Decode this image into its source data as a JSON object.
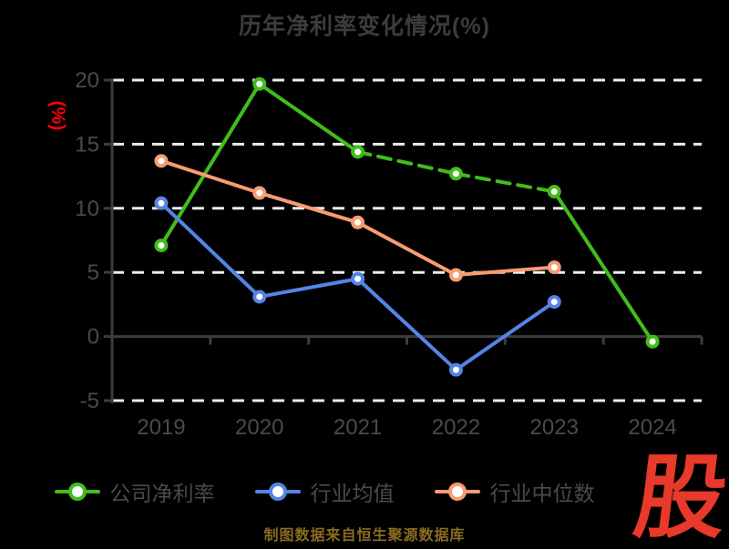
{
  "title": "历年净利率变化情况(%)",
  "y_axis_unit": "(%)",
  "caption": "制图数据来自恒生聚源数据库",
  "logo_text": "股",
  "colors": {
    "background": "#000000",
    "title": "#3c3c3c",
    "axis": "#3d3d3d",
    "grid": "#ececec",
    "tick_label": "#4a4a4a",
    "legend_text": "#4a4a4a",
    "unit_label": "#ff0000",
    "caption": "#8a6c20",
    "logo": "#e8392b"
  },
  "chart_data": {
    "type": "line",
    "title": "历年净利率变化情况(%)",
    "ylabel": "(%)",
    "categories": [
      "2019",
      "2020",
      "2021",
      "2022",
      "2023",
      "2024"
    ],
    "series": [
      {
        "name": "公司净利率",
        "color": "#41bd1c",
        "values": [
          7.1,
          19.7,
          14.4,
          12.7,
          11.3,
          -0.4
        ],
        "dashed_between_indices": [
          2,
          4
        ]
      },
      {
        "name": "行业均值",
        "color": "#5584e6",
        "values": [
          10.4,
          3.1,
          4.5,
          -2.6,
          2.7,
          null
        ],
        "dashed_between_indices": null
      },
      {
        "name": "行业中位数",
        "color": "#f89c72",
        "values": [
          13.7,
          11.2,
          8.9,
          4.8,
          5.4,
          null
        ],
        "dashed_between_indices": null
      }
    ],
    "y_ticks": [
      20,
      15,
      10,
      5,
      0,
      -5
    ],
    "ylim": [
      -5,
      20
    ],
    "grid": "horizontal-dashed-white",
    "legend_position": "bottom",
    "marker": "hollow-circle"
  }
}
